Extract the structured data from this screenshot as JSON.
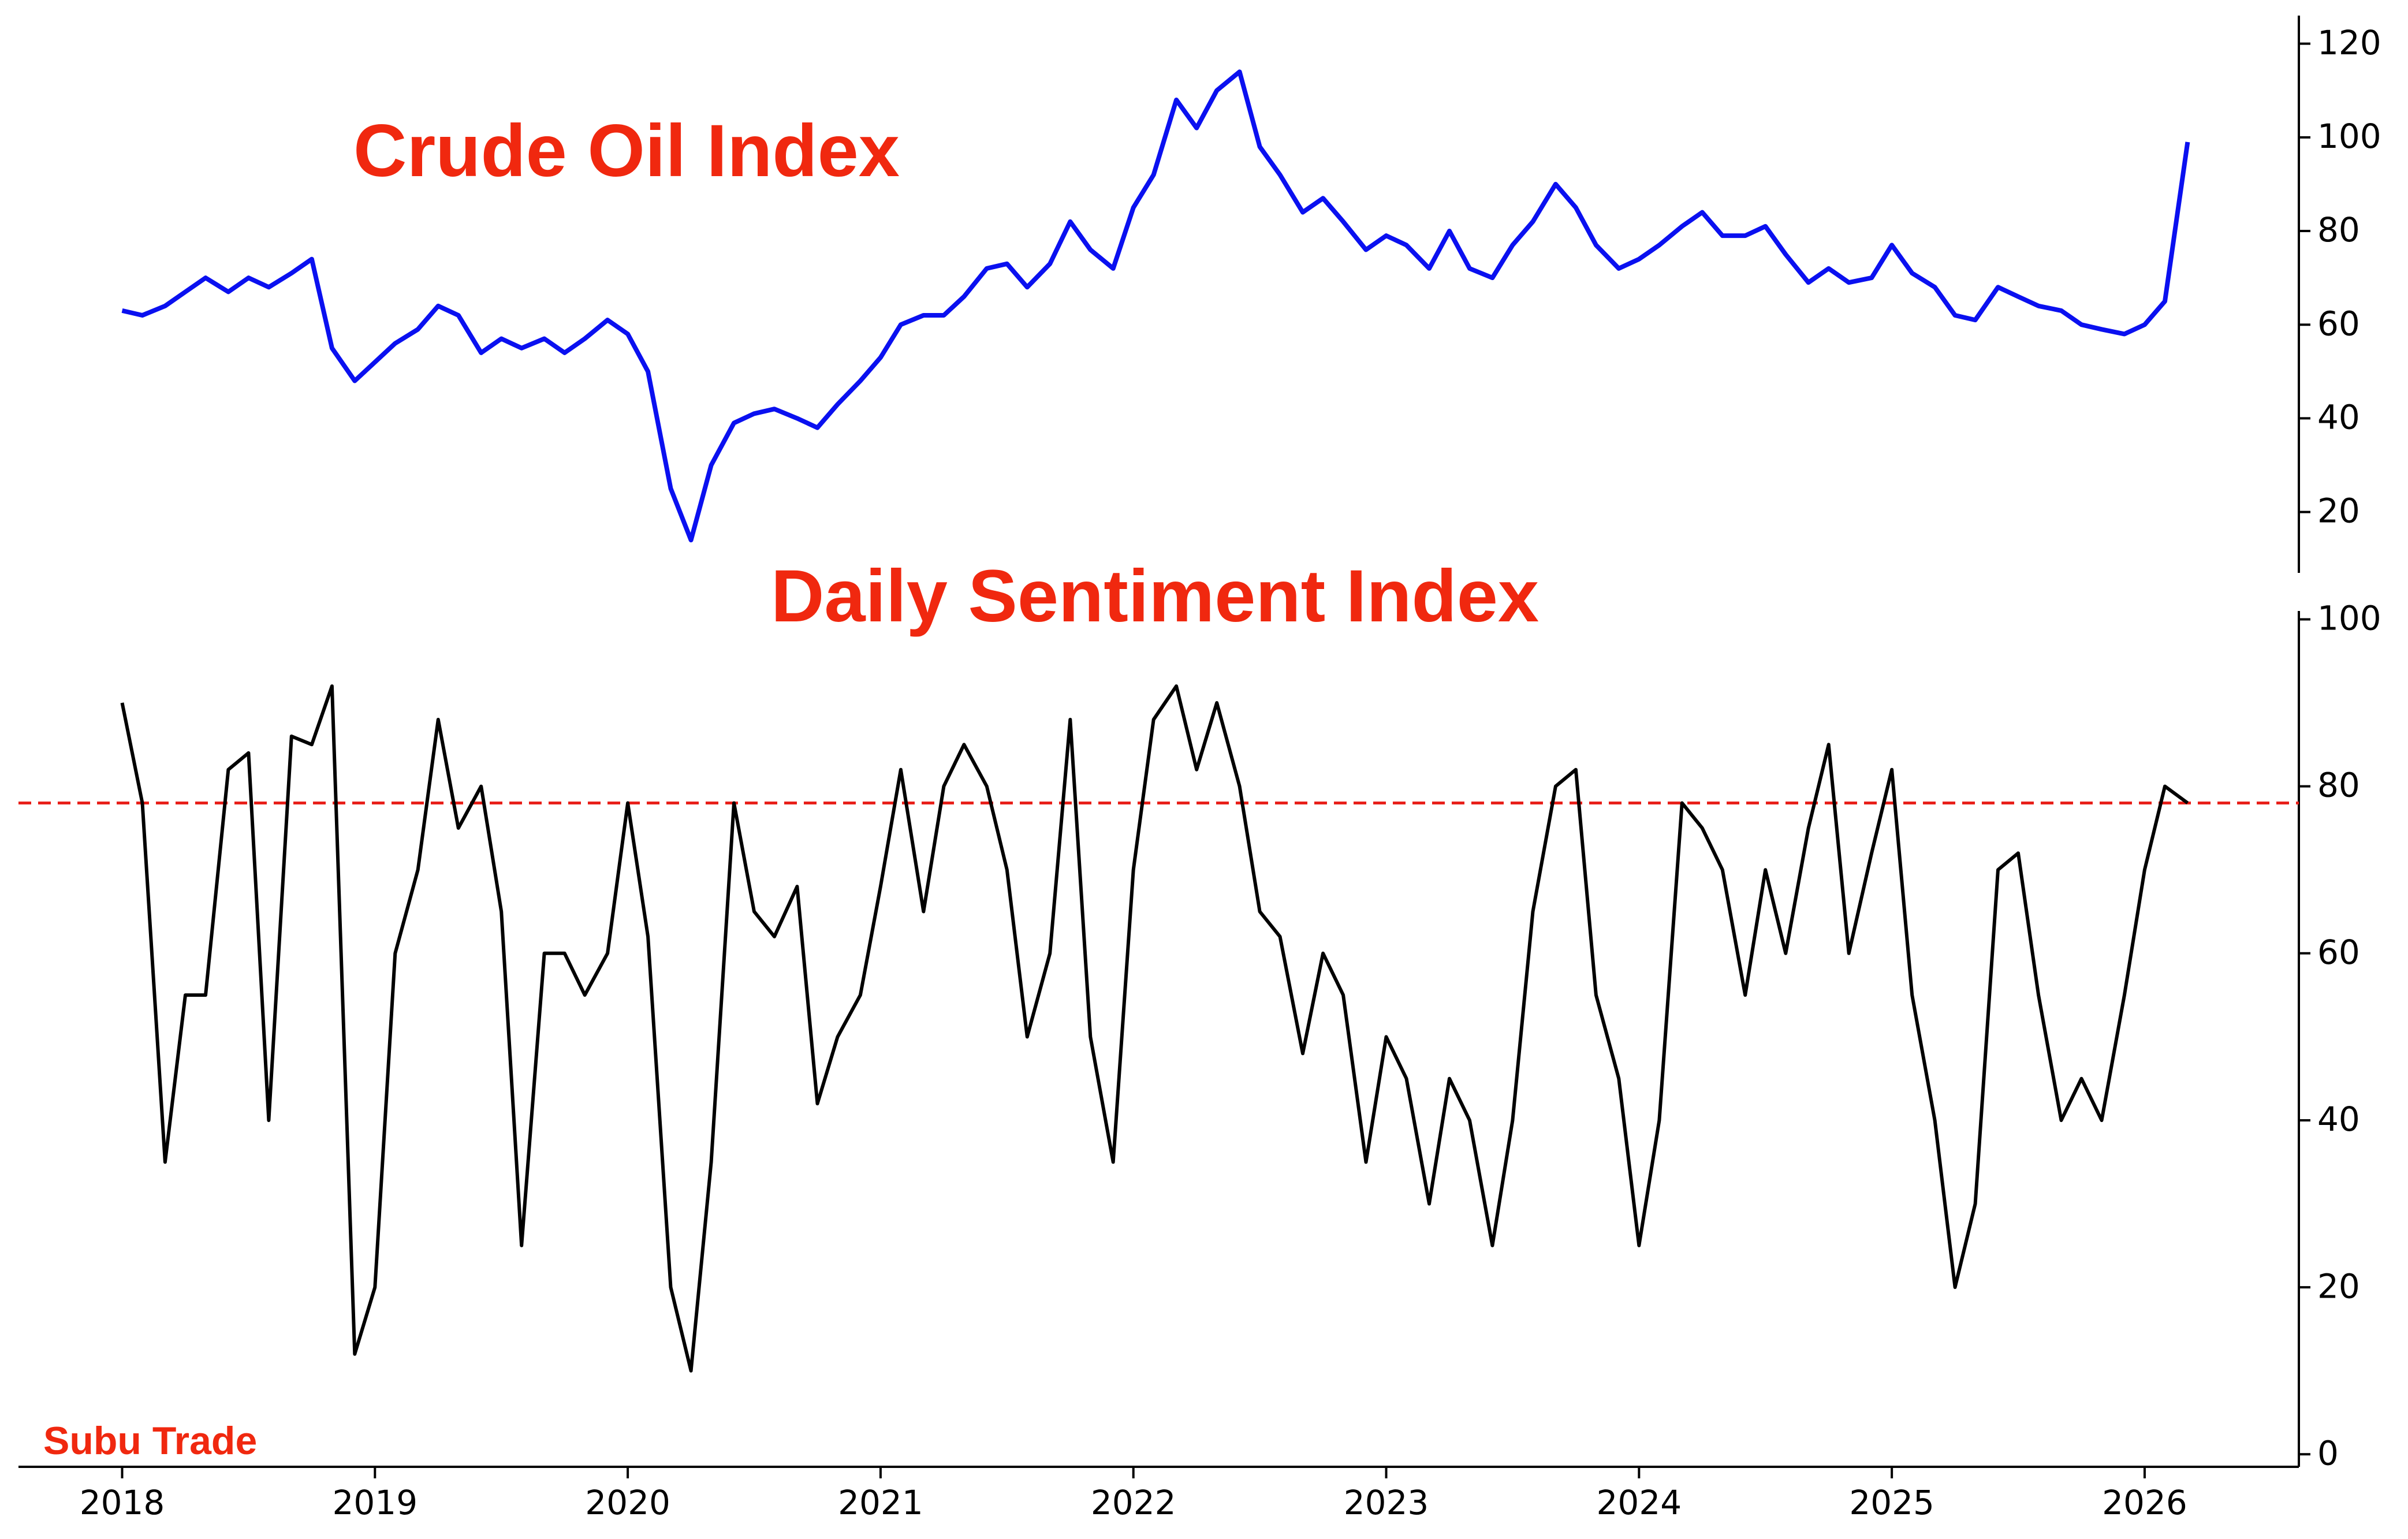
{
  "chart_data": [
    {
      "type": "line",
      "title": "Crude Oil Index",
      "x": [
        2018.0,
        2018.08,
        2018.17,
        2018.25,
        2018.33,
        2018.42,
        2018.5,
        2018.58,
        2018.67,
        2018.75,
        2018.83,
        2018.92,
        2019.0,
        2019.08,
        2019.17,
        2019.25,
        2019.33,
        2019.42,
        2019.5,
        2019.58,
        2019.67,
        2019.75,
        2019.83,
        2019.92,
        2020.0,
        2020.08,
        2020.17,
        2020.25,
        2020.33,
        2020.42,
        2020.5,
        2020.58,
        2020.67,
        2020.75,
        2020.83,
        2020.92,
        2021.0,
        2021.08,
        2021.17,
        2021.25,
        2021.33,
        2021.42,
        2021.5,
        2021.58,
        2021.67,
        2021.75,
        2021.83,
        2021.92,
        2022.0,
        2022.08,
        2022.17,
        2022.25,
        2022.33,
        2022.42,
        2022.5,
        2022.58,
        2022.67,
        2022.75,
        2022.83,
        2022.92,
        2023.0,
        2023.08,
        2023.17,
        2023.25,
        2023.33,
        2023.42,
        2023.5,
        2023.58,
        2023.67,
        2023.75,
        2023.83,
        2023.92,
        2024.0,
        2024.08,
        2024.17,
        2024.25,
        2024.33,
        2024.42,
        2024.5,
        2024.58,
        2024.67,
        2024.75,
        2024.83,
        2024.92,
        2025.0,
        2025.08,
        2025.17,
        2025.25,
        2025.33,
        2025.42,
        2025.5,
        2025.58,
        2025.67,
        2025.75,
        2025.83,
        2025.92,
        2026.0,
        2026.08,
        2026.17
      ],
      "series": [
        {
          "name": "Crude Oil Index",
          "color": "#0a10f0",
          "values": [
            63,
            62,
            64,
            67,
            70,
            67,
            70,
            68,
            71,
            74,
            55,
            48,
            52,
            56,
            59,
            64,
            62,
            54,
            57,
            55,
            57,
            54,
            57,
            61,
            58,
            50,
            25,
            14,
            30,
            39,
            41,
            42,
            40,
            38,
            43,
            48,
            53,
            60,
            62,
            62,
            66,
            72,
            73,
            68,
            73,
            82,
            76,
            72,
            85,
            92,
            108,
            102,
            110,
            114,
            98,
            92,
            84,
            87,
            82,
            76,
            79,
            77,
            72,
            80,
            72,
            70,
            77,
            82,
            90,
            85,
            77,
            72,
            74,
            77,
            81,
            84,
            79,
            79,
            81,
            75,
            69,
            72,
            69,
            70,
            77,
            71,
            68,
            62,
            61,
            68,
            66,
            64,
            63,
            60,
            59,
            58,
            60,
            65,
            99
          ]
        }
      ],
      "xlim": [
        2017.59,
        2026.61
      ],
      "ylim": [
        7,
        126
      ],
      "yticks": [
        20,
        40,
        60,
        80,
        100,
        120
      ]
    },
    {
      "type": "line",
      "title": "Daily Sentiment Index",
      "annotation": "Subu Trade",
      "x": [
        2018.0,
        2018.08,
        2018.17,
        2018.25,
        2018.33,
        2018.42,
        2018.5,
        2018.58,
        2018.67,
        2018.75,
        2018.83,
        2018.92,
        2019.0,
        2019.08,
        2019.17,
        2019.25,
        2019.33,
        2019.42,
        2019.5,
        2019.58,
        2019.67,
        2019.75,
        2019.83,
        2019.92,
        2020.0,
        2020.08,
        2020.17,
        2020.25,
        2020.33,
        2020.42,
        2020.5,
        2020.58,
        2020.67,
        2020.75,
        2020.83,
        2020.92,
        2021.0,
        2021.08,
        2021.17,
        2021.25,
        2021.33,
        2021.42,
        2021.5,
        2021.58,
        2021.67,
        2021.75,
        2021.83,
        2021.92,
        2022.0,
        2022.08,
        2022.17,
        2022.25,
        2022.33,
        2022.42,
        2022.5,
        2022.58,
        2022.67,
        2022.75,
        2022.83,
        2022.92,
        2023.0,
        2023.08,
        2023.17,
        2023.25,
        2023.33,
        2023.42,
        2023.5,
        2023.58,
        2023.67,
        2023.75,
        2023.83,
        2023.92,
        2024.0,
        2024.08,
        2024.17,
        2024.25,
        2024.33,
        2024.42,
        2024.5,
        2024.58,
        2024.67,
        2024.75,
        2024.83,
        2024.92,
        2025.0,
        2025.08,
        2025.17,
        2025.25,
        2025.33,
        2025.42,
        2025.5,
        2025.58,
        2025.67,
        2025.75,
        2025.83,
        2025.92,
        2026.0,
        2026.08,
        2026.17
      ],
      "series": [
        {
          "name": "Daily Sentiment Index",
          "color": "#000000",
          "values": [
            90,
            78,
            35,
            55,
            55,
            82,
            84,
            40,
            86,
            85,
            92,
            12,
            20,
            60,
            70,
            88,
            75,
            80,
            65,
            25,
            60,
            60,
            55,
            60,
            78,
            62,
            20,
            10,
            35,
            78,
            65,
            62,
            68,
            42,
            50,
            55,
            68,
            82,
            65,
            80,
            85,
            80,
            70,
            50,
            60,
            88,
            50,
            35,
            70,
            88,
            92,
            82,
            90,
            80,
            65,
            62,
            48,
            60,
            55,
            35,
            50,
            45,
            30,
            45,
            40,
            25,
            40,
            65,
            80,
            82,
            55,
            45,
            25,
            40,
            78,
            75,
            70,
            55,
            70,
            60,
            75,
            85,
            60,
            72,
            82,
            55,
            40,
            20,
            30,
            70,
            72,
            55,
            40,
            45,
            40,
            55,
            70,
            80,
            78
          ]
        }
      ],
      "hline": {
        "value": 78,
        "color": "#e8201a"
      },
      "xlim": [
        2017.59,
        2026.61
      ],
      "xticks": [
        2018,
        2019,
        2020,
        2021,
        2022,
        2023,
        2024,
        2025,
        2026
      ],
      "ylim": [
        -1.5,
        101
      ],
      "yticks": [
        0,
        20,
        40,
        60,
        80,
        100
      ]
    }
  ]
}
